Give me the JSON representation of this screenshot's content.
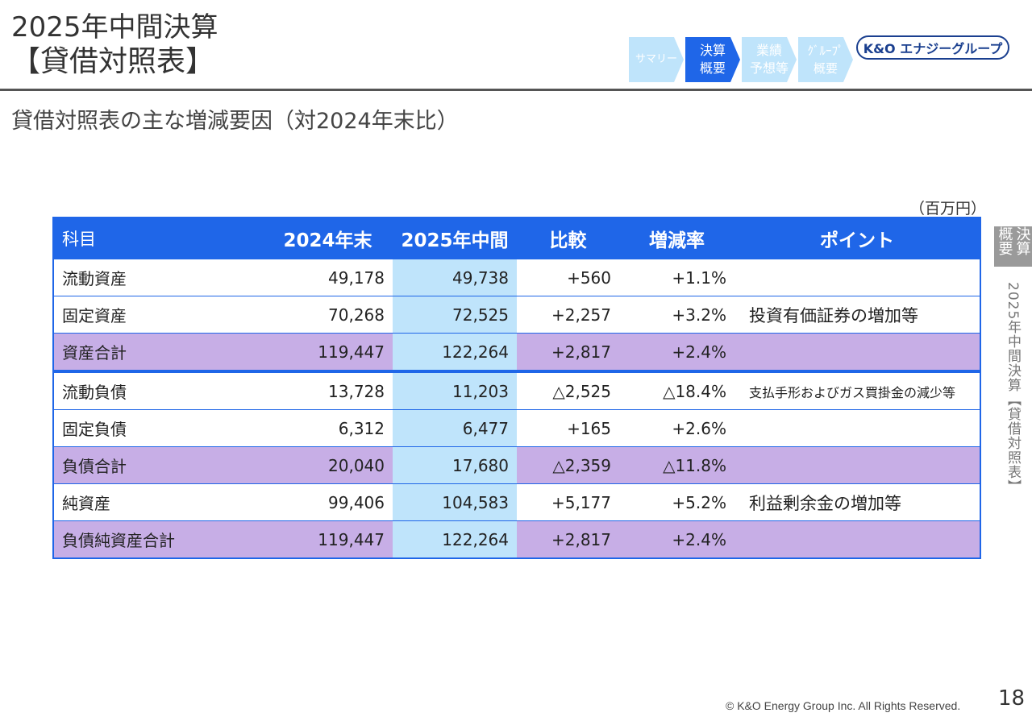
{
  "title": {
    "line1": "2025年中間決算",
    "line2": "【貸借対照表】"
  },
  "subtitle": "貸借対照表の主な増減要因（対2024年末比）",
  "nav_steps": [
    {
      "label": "サマリー",
      "active": false
    },
    {
      "label": "決算\n概要",
      "active": true
    },
    {
      "label": "業績\n予想等",
      "active": false
    },
    {
      "label": "ｸﾞﾙｰﾌﾟ\n概要",
      "active": false
    }
  ],
  "logo_text": "K&O エナジーグループ",
  "unit": "（百万円）",
  "table": {
    "headers": [
      "科目",
      "2024年末",
      "2025年中間",
      "比較",
      "増減率",
      "ポイント"
    ],
    "rows": [
      {
        "name": "流動資産",
        "y2024": "49,178",
        "y2025": "49,738",
        "diff": "+560",
        "rate": "+1.1%",
        "point": ""
      },
      {
        "name": "固定資産",
        "y2024": "70,268",
        "y2025": "72,525",
        "diff": "+2,257",
        "rate": "+3.2%",
        "point": "投資有価証券の増加等"
      },
      {
        "name": "資産合計",
        "y2024": "119,447",
        "y2025": "122,264",
        "diff": "+2,817",
        "rate": "+2.4%",
        "point": ""
      },
      {
        "name": "流動負債",
        "y2024": "13,728",
        "y2025": "11,203",
        "diff": "△2,525",
        "rate": "△18.4%",
        "point": "支払手形およびガス買掛金の減少等"
      },
      {
        "name": "固定負債",
        "y2024": "6,312",
        "y2025": "6,477",
        "diff": "+165",
        "rate": "+2.6%",
        "point": ""
      },
      {
        "name": "負債合計",
        "y2024": "20,040",
        "y2025": "17,680",
        "diff": "△2,359",
        "rate": "△11.8%",
        "point": ""
      },
      {
        "name": "純資産",
        "y2024": "99,406",
        "y2025": "104,583",
        "diff": "+5,177",
        "rate": "+5.2%",
        "point": "利益剰余金の増加等"
      },
      {
        "name": "負債純資産合計",
        "y2024": "119,447",
        "y2025": "122,264",
        "diff": "+2,817",
        "rate": "+2.4%",
        "point": ""
      }
    ]
  },
  "side_tab": "決算概要",
  "side_text": "2025年中間決算【貸借対照表】",
  "copyright": "© K&O Energy Group Inc. All Rights Reserved.",
  "page_number": "18",
  "colors": {
    "header_blue": "#1f66e8",
    "highlight_2025": "#bfe4fb",
    "total_row": "#c7aee6",
    "nav_active": "#1f66e8",
    "nav_inactive": "#bfe4fb",
    "logo": "#1a3f8f"
  }
}
